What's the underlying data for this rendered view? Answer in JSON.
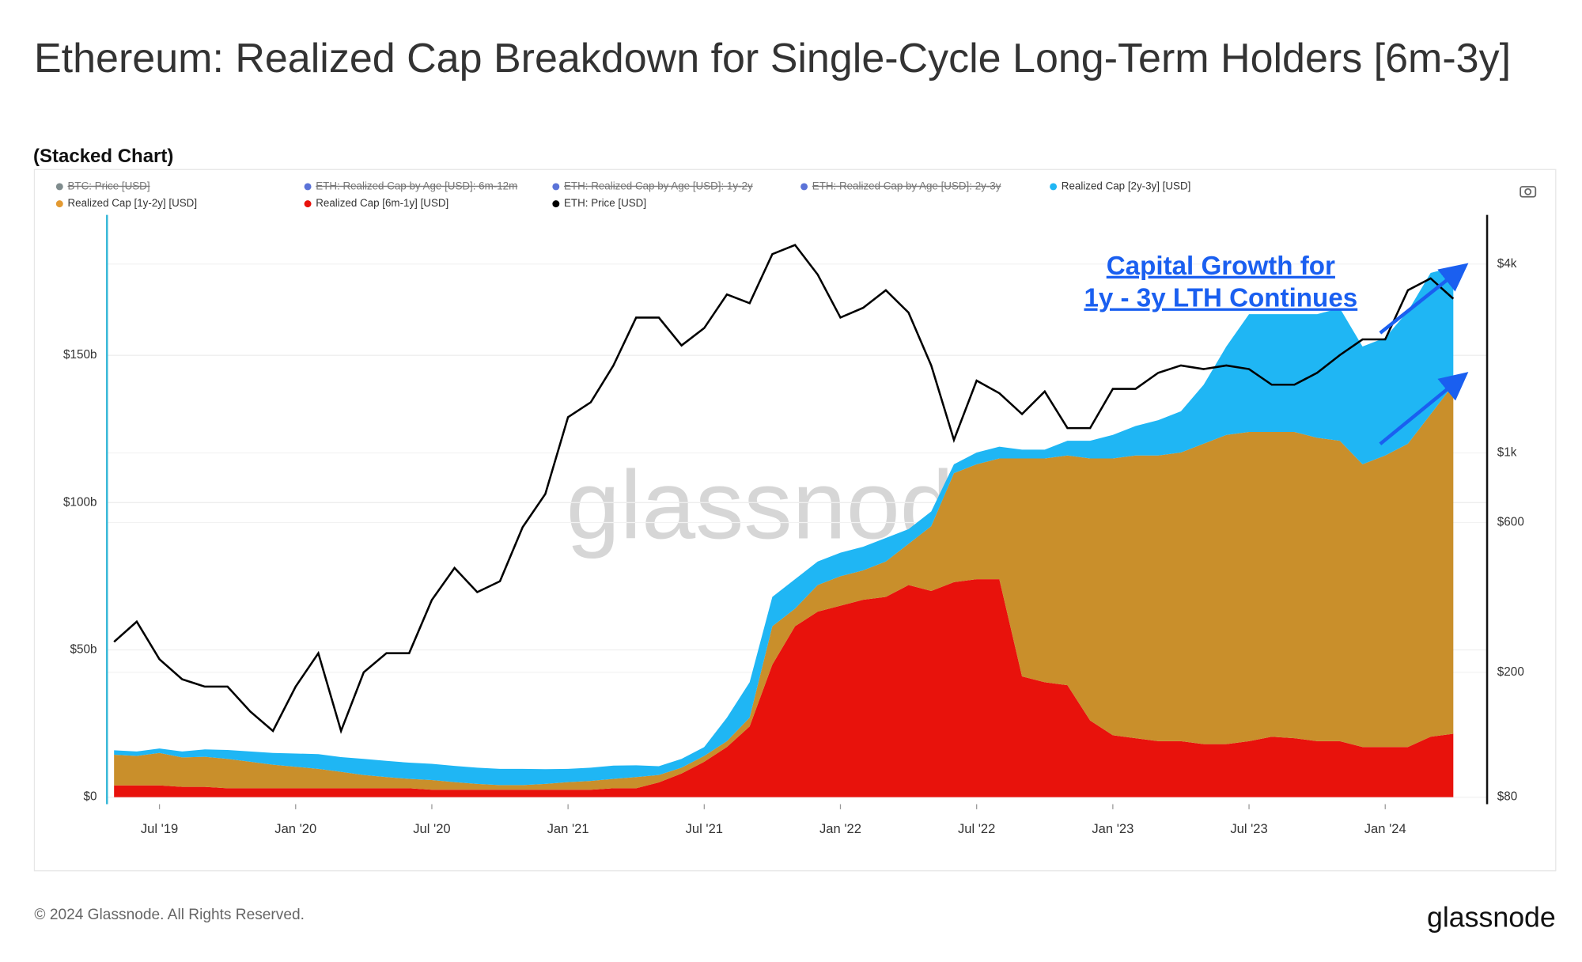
{
  "chart_data": {
    "type": "stacked-area",
    "title": "Ethereum: Realized Cap Breakdown for Single-Cycle Long-Term Holders [6m-3y]",
    "subtitle": "(Stacked Chart)",
    "annotation": [
      "Capital Growth for",
      "1y - 3y LTH Continues"
    ],
    "watermark": "glassnode",
    "footer": "© 2024 Glassnode. All Rights Reserved.",
    "brand": "glassnode",
    "legend_hidden": [
      {
        "name": "BTC: Price [USD]",
        "color": "#7f8c8d"
      },
      {
        "name": "ETH: Realized Cap by Age [USD]: 6m-12m",
        "color": "#5b73d8"
      },
      {
        "name": "ETH: Realized Cap by Age [USD]: 1y-2y",
        "color": "#5b73d8"
      },
      {
        "name": "ETH: Realized Cap by Age [USD]: 2y-3y",
        "color": "#5b73d8"
      }
    ],
    "x": [
      "2019-05",
      "2019-06",
      "2019-07",
      "2019-08",
      "2019-09",
      "2019-10",
      "2019-11",
      "2019-12",
      "2020-01",
      "2020-02",
      "2020-03",
      "2020-04",
      "2020-05",
      "2020-06",
      "2020-07",
      "2020-08",
      "2020-09",
      "2020-10",
      "2020-11",
      "2020-12",
      "2021-01",
      "2021-02",
      "2021-03",
      "2021-04",
      "2021-05",
      "2021-06",
      "2021-07",
      "2021-08",
      "2021-09",
      "2021-10",
      "2021-11",
      "2021-12",
      "2022-01",
      "2022-02",
      "2022-03",
      "2022-04",
      "2022-05",
      "2022-06",
      "2022-07",
      "2022-08",
      "2022-09",
      "2022-10",
      "2022-11",
      "2022-12",
      "2023-01",
      "2023-02",
      "2023-03",
      "2023-04",
      "2023-05",
      "2023-06",
      "2023-07",
      "2023-08",
      "2023-09",
      "2023-10",
      "2023-11",
      "2023-12",
      "2024-01",
      "2024-02",
      "2024-03",
      "2024-04"
    ],
    "xticks": [
      {
        "value": "2019-07",
        "label": "Jul '19"
      },
      {
        "value": "2020-01",
        "label": "Jan '20"
      },
      {
        "value": "2020-07",
        "label": "Jul '20"
      },
      {
        "value": "2021-01",
        "label": "Jan '21"
      },
      {
        "value": "2021-07",
        "label": "Jul '21"
      },
      {
        "value": "2022-01",
        "label": "Jan '22"
      },
      {
        "value": "2022-07",
        "label": "Jul '22"
      },
      {
        "value": "2023-01",
        "label": "Jan '23"
      },
      {
        "value": "2023-07",
        "label": "Jul '23"
      },
      {
        "value": "2024-01",
        "label": "Jan '24"
      }
    ],
    "ylim": [
      0,
      197
    ],
    "yticks": [
      {
        "value": 0,
        "label": "$0"
      },
      {
        "value": 50,
        "label": "$50b"
      },
      {
        "value": 100,
        "label": "$100b"
      },
      {
        "value": 150,
        "label": "$150b"
      }
    ],
    "y2lim": [
      80,
      5650
    ],
    "y2ticks": [
      {
        "value": 80,
        "label": "$80"
      },
      {
        "value": 200,
        "label": "$200"
      },
      {
        "value": 600,
        "label": "$600"
      },
      {
        "value": 1000,
        "label": "$1k"
      },
      {
        "value": 4000,
        "label": "$4k"
      }
    ],
    "y2log": true,
    "grid": true,
    "series": [
      {
        "name": "Realized Cap [6m-1y] [USD]",
        "color": "#e8120c",
        "values": [
          4,
          4,
          4,
          3.5,
          3.5,
          3,
          3,
          3,
          3,
          3,
          3,
          3,
          3,
          3,
          2.5,
          2.5,
          2.5,
          2.5,
          2.5,
          2.5,
          2.5,
          2.5,
          3,
          3,
          5,
          8,
          12,
          17,
          24,
          45,
          58,
          63,
          65,
          67,
          68,
          72,
          70,
          73,
          74,
          74,
          41,
          39,
          38,
          26,
          21,
          20,
          19,
          19,
          18,
          18,
          19,
          20.5,
          20,
          19,
          19,
          17,
          17,
          17,
          20.5,
          21.5
        ]
      },
      {
        "name": "Realized Cap [1y-2y] [USD]",
        "color": "#c98f2b",
        "values": [
          10.4,
          10,
          11,
          10,
          10.2,
          10,
          9,
          8,
          7.3,
          6.6,
          5.6,
          4.5,
          3.8,
          3.2,
          3.3,
          2.6,
          2,
          1.6,
          1.6,
          2,
          2.6,
          3,
          3.2,
          3.8,
          2.5,
          2,
          2,
          2,
          3,
          13,
          6,
          9,
          10,
          10,
          12,
          14,
          22,
          37,
          39,
          41,
          74,
          76,
          78,
          89,
          94,
          96,
          97,
          98,
          102,
          105,
          105,
          103.5,
          104,
          103,
          102,
          96,
          99,
          103,
          109.5,
          118.5
        ]
      },
      {
        "name": "Realized Cap [2y-3y] [USD]",
        "color": "#1fb6f4",
        "values": [
          1.5,
          1.5,
          1.5,
          2,
          2.5,
          3,
          3.5,
          4,
          4.5,
          5,
          5,
          5.5,
          5.5,
          5.5,
          5.5,
          5.5,
          5.5,
          5.5,
          5.5,
          5,
          4.5,
          4.5,
          4.5,
          4,
          3,
          3,
          3,
          8,
          12,
          10,
          10,
          8,
          8,
          8,
          8,
          5,
          5,
          3,
          4,
          4,
          3,
          3,
          5,
          6,
          8,
          10,
          12,
          14,
          20,
          30,
          40,
          40,
          40,
          42,
          45,
          40,
          40,
          45,
          48,
          40
        ]
      },
      {
        "name": "ETH: Price [USD]",
        "color": "#000000",
        "axis": "y2",
        "values": [
          250,
          290,
          220,
          190,
          180,
          180,
          150,
          130,
          180,
          230,
          130,
          200,
          230,
          230,
          340,
          430,
          360,
          390,
          580,
          740,
          1300,
          1450,
          1900,
          2700,
          2700,
          2200,
          2500,
          3200,
          3000,
          4300,
          4600,
          3700,
          2700,
          2900,
          3300,
          2800,
          1900,
          1100,
          1700,
          1550,
          1330,
          1570,
          1200,
          1200,
          1600,
          1600,
          1800,
          1900,
          1850,
          1900,
          1850,
          1650,
          1650,
          1800,
          2050,
          2300,
          2300,
          3300,
          3600,
          3100
        ]
      }
    ]
  }
}
